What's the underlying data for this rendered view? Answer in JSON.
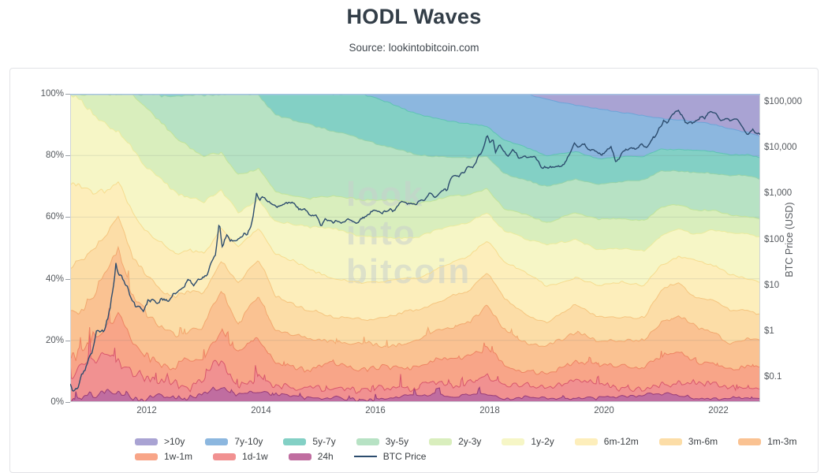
{
  "header": {
    "title": "HODL Waves",
    "source": "Source: lookintobitcoin.com"
  },
  "watermark": {
    "lines": [
      "look",
      "into",
      "bitcoin"
    ]
  },
  "axes": {
    "left_ticks": [
      "100%",
      "80%",
      "60%",
      "40%",
      "20%",
      "0%"
    ],
    "right_ticks": [
      "$100,000",
      "$10,000",
      "$1,000",
      "$100",
      "$10",
      "$1",
      "$0.1"
    ],
    "right_title": "BTC Price (USD)",
    "x_ticks": [
      "2012",
      "2014",
      "2016",
      "2018",
      "2020",
      "2022"
    ]
  },
  "chart_data": {
    "type": "area",
    "stacked": true,
    "stack_order": "oldest band at top, youngest at bottom, total = 100%",
    "x_axis": {
      "tick_years": [
        2012,
        2014,
        2016,
        2018,
        2020,
        2022
      ],
      "range_years": [
        2010.66,
        2022.73
      ]
    },
    "left_axis": {
      "units": "% of supply by coin age",
      "range_pct": [
        0,
        100
      ],
      "gridlines_pct": [
        20,
        40,
        60,
        80
      ]
    },
    "right_axis": {
      "title": "BTC Price (USD)",
      "scale": "log",
      "ticks_usd": [
        100000,
        10000,
        1000,
        100,
        10,
        1,
        0.1
      ]
    },
    "legend_position": "bottom",
    "x_years": [
      2010.75,
      2011.0,
      2011.25,
      2011.5,
      2011.75,
      2012.0,
      2012.5,
      2013.0,
      2013.3,
      2013.6,
      2013.95,
      2014.25,
      2014.75,
      2015.25,
      2015.75,
      2016.25,
      2016.75,
      2017.25,
      2017.6,
      2017.95,
      2018.25,
      2018.6,
      2019.0,
      2019.5,
      2019.9,
      2020.3,
      2020.7,
      2021.0,
      2021.3,
      2021.6,
      2021.9,
      2022.2,
      2022.5,
      2022.75
    ],
    "series": [
      {
        "name": ">10y",
        "color": "#a9a3d3",
        "stroke": "#9289c8",
        "noise": 0.2,
        "values": [
          0,
          0,
          0,
          0,
          0,
          0,
          0,
          0,
          0,
          0,
          0,
          0,
          0,
          0,
          0,
          0,
          0,
          0,
          0,
          0,
          0,
          0,
          2,
          3.5,
          5,
          6,
          7,
          8,
          8.5,
          9,
          10,
          11.5,
          12.5,
          14
        ]
      },
      {
        "name": "7y-10y",
        "color": "#8cb7df",
        "stroke": "#6ca5d8",
        "noise": 0.3,
        "values": [
          0,
          0,
          0,
          0,
          0,
          0,
          0,
          0,
          0,
          0,
          0,
          0,
          0,
          0,
          0,
          3,
          6.5,
          8.5,
          9.5,
          10.5,
          15,
          17,
          18,
          15,
          16,
          14.5,
          13.5,
          10,
          9.5,
          9.5,
          8.5,
          8,
          7,
          6.5
        ]
      },
      {
        "name": "5y-7y",
        "color": "#83d0c5",
        "stroke": "#5fc3b4",
        "noise": 0.35,
        "values": [
          0,
          0,
          0,
          0,
          0,
          0,
          0,
          0,
          0,
          0,
          0,
          6.5,
          9.5,
          12.5,
          15,
          14,
          13,
          12,
          11.5,
          10,
          11,
          11,
          10.5,
          9,
          8.5,
          8,
          7.5,
          7,
          7,
          7,
          7,
          7,
          7,
          7
        ]
      },
      {
        "name": "3y-5y",
        "color": "#b7e2c4",
        "stroke": "#97d3a9",
        "noise": 0.5,
        "values": [
          0,
          0,
          0,
          0,
          0,
          5,
          14.5,
          20.5,
          19.5,
          26,
          24,
          25,
          24,
          21,
          19,
          17,
          16,
          13,
          12,
          10,
          11,
          11.5,
          11,
          11,
          11.5,
          12,
          13,
          12,
          11,
          12,
          12,
          12.5,
          13,
          13
        ]
      },
      {
        "name": "2y-3y",
        "color": "#d9eebd",
        "stroke": "#c2e49a",
        "noise": 0.5,
        "values": [
          0,
          5,
          9.5,
          12,
          17.5,
          19,
          18,
          15,
          12,
          12,
          10,
          10,
          9,
          10,
          12,
          13,
          11,
          10,
          9,
          8,
          7.5,
          7.5,
          8,
          9,
          10,
          10,
          10,
          9,
          8,
          8,
          7,
          6.5,
          6,
          6
        ]
      },
      {
        "name": "1y-2y",
        "color": "#f6f6c6",
        "stroke": "#ebeb9e",
        "noise": 0.6,
        "values": [
          28,
          26,
          22,
          17,
          20,
          20,
          19,
          16,
          12,
          12,
          10,
          11,
          13,
          16,
          16,
          14,
          13,
          12,
          11,
          9,
          10,
          11,
          13,
          12,
          11,
          11,
          11,
          9,
          8.5,
          9,
          11.5,
          13,
          14,
          14.5
        ]
      },
      {
        "name": "6m-12m",
        "color": "#fdeebb",
        "stroke": "#f6dc8f",
        "noise": 0.7,
        "values": [
          27,
          22,
          16,
          12,
          16,
          16,
          14,
          13,
          10,
          11,
          10,
          13,
          14,
          12,
          11,
          11,
          11,
          11,
          11,
          10,
          12,
          13,
          12,
          9,
          10,
          11,
          10,
          9,
          9,
          11,
          11,
          12,
          11,
          10.5
        ]
      },
      {
        "name": "3m-6m",
        "color": "#fcdda7",
        "stroke": "#f5c57f",
        "noise": 0.8,
        "values": [
          16,
          14,
          13,
          12,
          14,
          13,
          11,
          10,
          9,
          12,
          11,
          11,
          10,
          9,
          8,
          9,
          9,
          10,
          10,
          11,
          11,
          10,
          8,
          8,
          9,
          8,
          9,
          10,
          10,
          11,
          10,
          10,
          9,
          9
        ]
      },
      {
        "name": "1m-3m",
        "color": "#fac292",
        "stroke": "#f2a86e",
        "noise": 1.2,
        "values": [
          13,
          14,
          16,
          18,
          14,
          12,
          10,
          10,
          14,
          12,
          14,
          10,
          9,
          8,
          8,
          8,
          9,
          10,
          11,
          13,
          10,
          8,
          7,
          10,
          8,
          8,
          8,
          11,
          12,
          11,
          10,
          8,
          8,
          8
        ]
      },
      {
        "name": "1w-1m",
        "color": "#f8a588",
        "stroke": "#ee8462",
        "noise": 1.6,
        "values": [
          9,
          10,
          12,
          15,
          10,
          8,
          7,
          8,
          12,
          8,
          11,
          7,
          6,
          6,
          6,
          6,
          6,
          7,
          8,
          10,
          7,
          6,
          5.5,
          7,
          6,
          6,
          6,
          8,
          9,
          7,
          7,
          6,
          6.5,
          6
        ]
      },
      {
        "name": "1d-1w",
        "color": "#f19191",
        "stroke": "#d9576c",
        "noise": 2.0,
        "values": [
          5,
          6,
          8,
          10,
          6,
          5,
          4.5,
          5,
          8,
          5,
          7,
          4.5,
          4,
          4,
          3.5,
          3.5,
          4,
          4.5,
          5,
          6,
          4,
          3.5,
          3.5,
          4.5,
          3.5,
          4,
          3.5,
          5,
          5.5,
          4,
          4.5,
          4,
          4.5,
          4
        ]
      },
      {
        "name": "24h",
        "color": "#c06da0",
        "stroke": "#993c78",
        "noise": 1.1,
        "values": [
          2,
          3,
          3.5,
          4,
          2.5,
          2,
          2,
          2.5,
          3.5,
          2,
          3,
          2,
          1.5,
          1.5,
          1.5,
          1.5,
          1.5,
          2,
          2,
          2.5,
          1.5,
          1.5,
          1.5,
          2,
          1.5,
          1.5,
          1.5,
          2,
          2,
          1.5,
          1.5,
          1.5,
          1.5,
          1.5
        ]
      }
    ],
    "price_series": {
      "name": "BTC Price",
      "color": "#2c4c6e",
      "axis": "right_log_usd",
      "points": [
        [
          2010.66,
          0.06
        ],
        [
          2010.8,
          0.07
        ],
        [
          2010.95,
          0.2
        ],
        [
          2011.05,
          0.35
        ],
        [
          2011.12,
          0.95
        ],
        [
          2011.2,
          0.8
        ],
        [
          2011.32,
          1.8
        ],
        [
          2011.42,
          8.5
        ],
        [
          2011.46,
          29
        ],
        [
          2011.52,
          17
        ],
        [
          2011.6,
          11
        ],
        [
          2011.72,
          6
        ],
        [
          2011.85,
          3.2
        ],
        [
          2011.95,
          2.6
        ],
        [
          2012.05,
          5.5
        ],
        [
          2012.2,
          4.6
        ],
        [
          2012.35,
          5.1
        ],
        [
          2012.5,
          6.6
        ],
        [
          2012.65,
          9.5
        ],
        [
          2012.75,
          12
        ],
        [
          2012.85,
          10.5
        ],
        [
          2013.0,
          13.4
        ],
        [
          2013.1,
          24
        ],
        [
          2013.2,
          47
        ],
        [
          2013.27,
          230
        ],
        [
          2013.32,
          68
        ],
        [
          2013.4,
          117
        ],
        [
          2013.5,
          97
        ],
        [
          2013.62,
          102
        ],
        [
          2013.75,
          133
        ],
        [
          2013.83,
          210
        ],
        [
          2013.88,
          500
        ],
        [
          2013.92,
          1130
        ],
        [
          2013.97,
          740
        ],
        [
          2014.05,
          810
        ],
        [
          2014.15,
          620
        ],
        [
          2014.28,
          450
        ],
        [
          2014.42,
          590
        ],
        [
          2014.55,
          580
        ],
        [
          2014.7,
          470
        ],
        [
          2014.85,
          360
        ],
        [
          2014.95,
          320
        ],
        [
          2015.04,
          215
        ],
        [
          2015.12,
          270
        ],
        [
          2015.25,
          235
        ],
        [
          2015.4,
          240
        ],
        [
          2015.55,
          270
        ],
        [
          2015.7,
          235
        ],
        [
          2015.82,
          310
        ],
        [
          2015.92,
          415
        ],
        [
          2016.05,
          380
        ],
        [
          2016.2,
          415
        ],
        [
          2016.35,
          450
        ],
        [
          2016.45,
          670
        ],
        [
          2016.55,
          660
        ],
        [
          2016.7,
          610
        ],
        [
          2016.85,
          730
        ],
        [
          2016.95,
          960
        ],
        [
          2017.05,
          890
        ],
        [
          2017.15,
          1190
        ],
        [
          2017.25,
          1250
        ],
        [
          2017.35,
          2550
        ],
        [
          2017.45,
          2450
        ],
        [
          2017.55,
          2870
        ],
        [
          2017.62,
          4300
        ],
        [
          2017.7,
          3800
        ],
        [
          2017.78,
          5800
        ],
        [
          2017.85,
          7300
        ],
        [
          2017.9,
          11000
        ],
        [
          2017.95,
          19000
        ],
        [
          2018.0,
          13500
        ],
        [
          2018.05,
          15000
        ],
        [
          2018.1,
          8200
        ],
        [
          2018.17,
          11100
        ],
        [
          2018.25,
          8200
        ],
        [
          2018.32,
          7000
        ],
        [
          2018.4,
          9300
        ],
        [
          2018.5,
          6500
        ],
        [
          2018.6,
          6300
        ],
        [
          2018.7,
          6600
        ],
        [
          2018.8,
          6400
        ],
        [
          2018.88,
          4200
        ],
        [
          2018.95,
          3400
        ],
        [
          2019.05,
          3700
        ],
        [
          2019.15,
          3900
        ],
        [
          2019.25,
          4100
        ],
        [
          2019.35,
          5400
        ],
        [
          2019.42,
          8200
        ],
        [
          2019.48,
          12500
        ],
        [
          2019.55,
          10800
        ],
        [
          2019.62,
          11800
        ],
        [
          2019.7,
          9800
        ],
        [
          2019.8,
          8300
        ],
        [
          2019.88,
          7300
        ],
        [
          2019.95,
          7500
        ],
        [
          2020.05,
          8500
        ],
        [
          2020.12,
          10200
        ],
        [
          2020.2,
          5100
        ],
        [
          2020.3,
          6900
        ],
        [
          2020.38,
          8900
        ],
        [
          2020.45,
          9300
        ],
        [
          2020.55,
          9200
        ],
        [
          2020.65,
          11500
        ],
        [
          2020.75,
          10700
        ],
        [
          2020.82,
          13500
        ],
        [
          2020.88,
          16500
        ],
        [
          2020.95,
          23000
        ],
        [
          2021.0,
          29000
        ],
        [
          2021.04,
          38500
        ],
        [
          2021.1,
          33000
        ],
        [
          2021.17,
          49000
        ],
        [
          2021.25,
          58000
        ],
        [
          2021.3,
          63500
        ],
        [
          2021.37,
          53000
        ],
        [
          2021.42,
          37000
        ],
        [
          2021.5,
          34500
        ],
        [
          2021.55,
          31500
        ],
        [
          2021.62,
          40000
        ],
        [
          2021.68,
          47500
        ],
        [
          2021.75,
          44500
        ],
        [
          2021.8,
          50000
        ],
        [
          2021.86,
          66000
        ],
        [
          2021.92,
          57000
        ],
        [
          2021.98,
          47000
        ],
        [
          2022.05,
          36500
        ],
        [
          2022.12,
          44000
        ],
        [
          2022.2,
          39000
        ],
        [
          2022.28,
          46000
        ],
        [
          2022.35,
          39500
        ],
        [
          2022.42,
          30000
        ],
        [
          2022.48,
          20000
        ],
        [
          2022.53,
          18500
        ],
        [
          2022.6,
          24000
        ],
        [
          2022.66,
          20000
        ],
        [
          2022.73,
          19400
        ]
      ]
    }
  }
}
